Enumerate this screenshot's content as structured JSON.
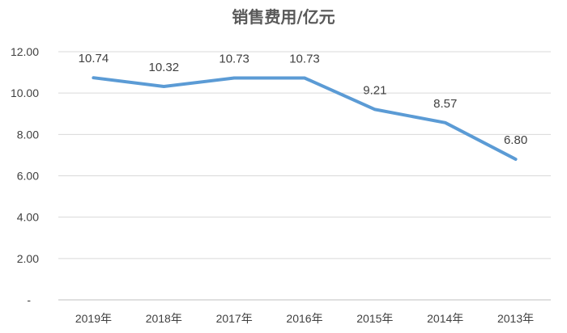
{
  "chart_data": {
    "type": "line",
    "title": "销售费用/亿元",
    "categories": [
      "2019年",
      "2018年",
      "2017年",
      "2016年",
      "2015年",
      "2014年",
      "2013年"
    ],
    "series": [
      {
        "values": [
          10.74,
          10.32,
          10.73,
          10.73,
          9.21,
          8.57,
          6.8
        ]
      }
    ],
    "data_labels": [
      "10.74",
      "10.32",
      "10.73",
      "10.73",
      "9.21",
      "8.57",
      "6.80"
    ],
    "y_tick_labels": [
      "-",
      "2.00",
      "4.00",
      "6.00",
      "8.00",
      "10.00",
      "12.00"
    ],
    "y_ticks": [
      0,
      2,
      4,
      6,
      8,
      10,
      12
    ],
    "ylim": [
      0,
      12
    ],
    "grid": true,
    "legend": "none",
    "line_color": "#5b9bd5"
  }
}
